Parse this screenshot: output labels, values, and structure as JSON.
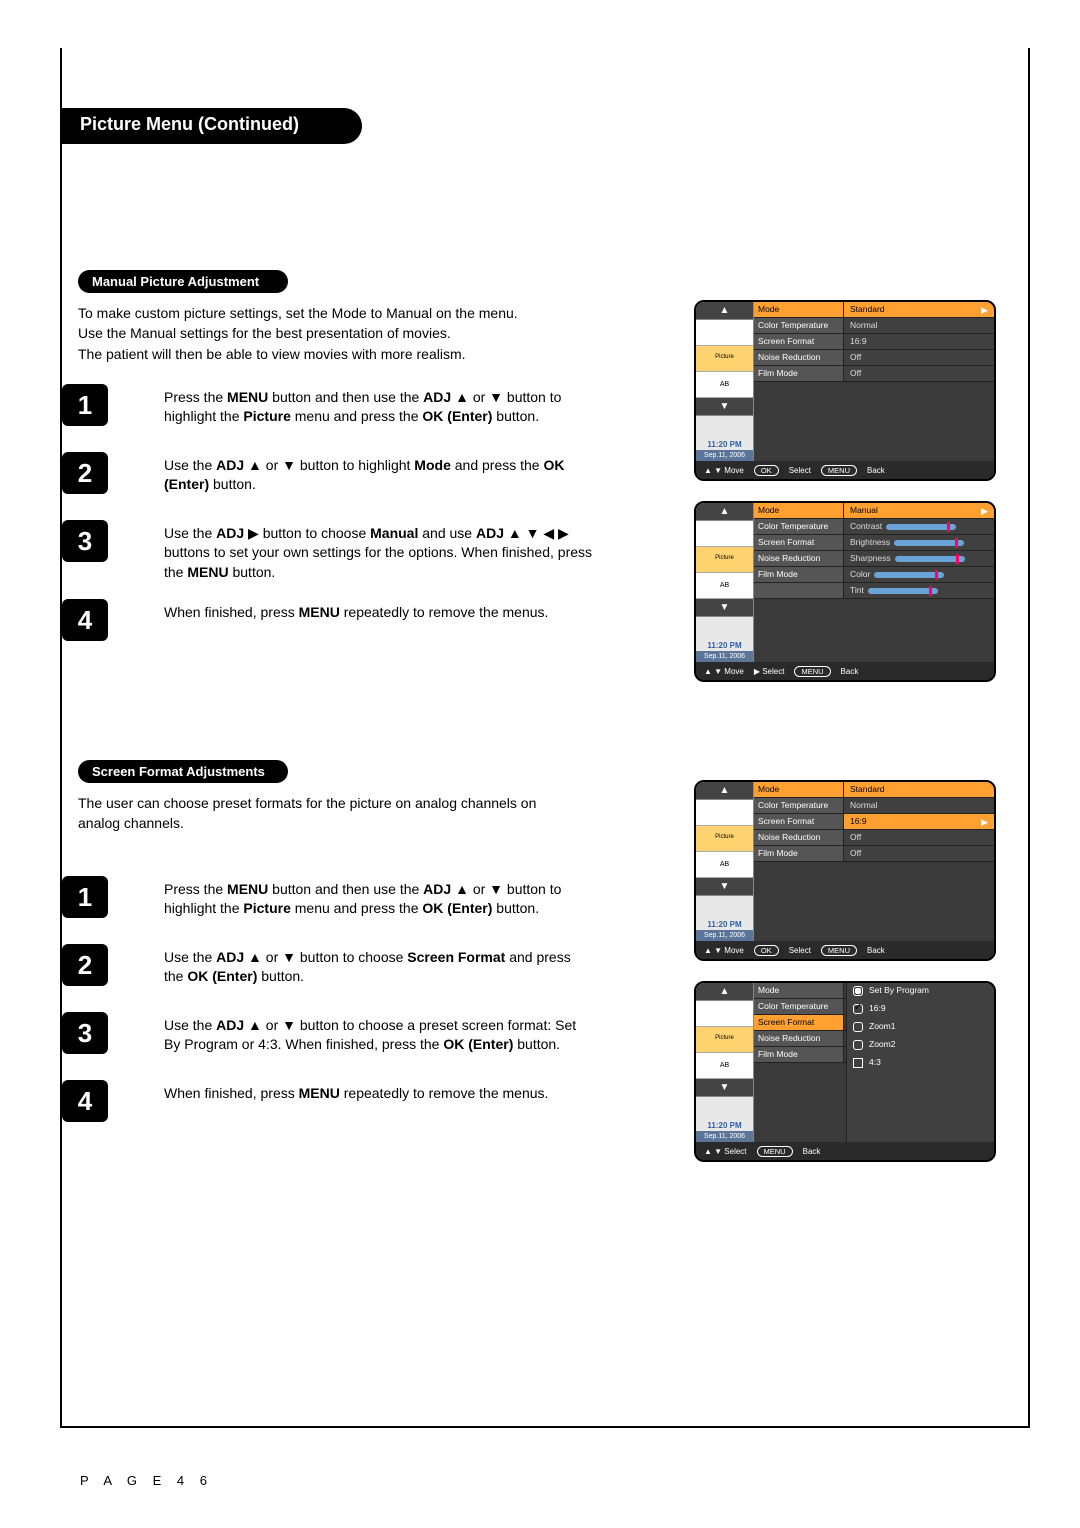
{
  "page_title": "Picture Menu (Continued)",
  "page_number": "P A G E  4 6",
  "section1": {
    "heading": "Manual Picture Adjustment",
    "intro_lines": [
      "To make custom picture settings, set the Mode to Manual on the menu.",
      "Use the Manual settings for the best presentation of movies.",
      "The patient will then be able to view movies with more realism."
    ],
    "steps": [
      {
        "n": "1",
        "html": "Press the <b>MENU</b> button and then use the <b>ADJ</b> ▲ or ▼ button to highlight the <b>Picture</b> menu and press the <b>OK (Enter)</b> button."
      },
      {
        "n": "2",
        "html": "Use the <b>ADJ</b> ▲ or ▼ button to highlight <b>Mode</b> and press the <b>OK (Enter)</b> button."
      },
      {
        "n": "3",
        "html": "Use the <b>ADJ</b> ▶ button to choose <b>Manual</b> and use <b>ADJ</b> ▲ ▼ ◀ ▶ buttons to set your own settings for the options. When finished, press the <b>MENU</b> button."
      },
      {
        "n": "4",
        "html": "When finished, press <b>MENU</b> repeatedly to remove the menus."
      }
    ]
  },
  "section2": {
    "heading": "Screen Format Adjustments",
    "intro_lines": [
      "The user can choose preset formats for the picture on analog channels on analog channels."
    ],
    "steps": [
      {
        "n": "1",
        "html": "Press the <b>MENU</b> button and then use the <b>ADJ</b> ▲ or ▼ button to highlight the <b>Picture</b> menu and press the <b>OK (Enter)</b> button."
      },
      {
        "n": "2",
        "html": "Use the <b>ADJ</b> ▲ or ▼ button to choose <b>Screen Format</b> and press the <b>OK (Enter)</b> button."
      },
      {
        "n": "3",
        "html": "Use the <b>ADJ</b> ▲ or ▼ button to choose a preset screen format: Set By Program or 4:3. When finished, press the <b>OK (Enter)</b> button."
      },
      {
        "n": "4",
        "html": "When finished, press <b>MENU</b> repeatedly to remove the menus."
      }
    ]
  },
  "osd_common": {
    "time": "11:20 PM",
    "date": "Sep.11, 2006",
    "side_labels": [
      "▲",
      "",
      "",
      "",
      "▼"
    ],
    "ab": "AB"
  },
  "osd1": {
    "rows": [
      {
        "l": "Mode",
        "r": "Standard",
        "hl": true,
        "tri": true
      },
      {
        "l": "Color Temperature",
        "r": "Normal"
      },
      {
        "l": "Screen Format",
        "r": "16:9"
      },
      {
        "l": "Noise Reduction",
        "r": "Off"
      },
      {
        "l": "Film Mode",
        "r": "Off"
      }
    ],
    "foot": [
      {
        "t": "▲ ▼ Move"
      },
      {
        "pill": "OK"
      },
      {
        "t": "Select"
      },
      {
        "pill": "MENU"
      },
      {
        "t": "Back"
      }
    ]
  },
  "osd2": {
    "rows": [
      {
        "l": "Mode",
        "r": "Manual",
        "hl": true,
        "tri": true
      },
      {
        "l": "Color Temperature",
        "r": "Contrast",
        "slider": true
      },
      {
        "l": "Screen Format",
        "r": "Brightness",
        "slider": true
      },
      {
        "l": "Noise Reduction",
        "r": "Sharpness",
        "slider": true
      },
      {
        "l": "Film Mode",
        "r": "Color",
        "slider": true
      },
      {
        "l": "",
        "r": "Tint",
        "slider": true
      }
    ],
    "foot": [
      {
        "t": "▲ ▼ Move"
      },
      {
        "t": "▶ Select"
      },
      {
        "pill": "MENU"
      },
      {
        "t": "Back"
      }
    ]
  },
  "osd3": {
    "rows": [
      {
        "l": "Mode",
        "r": "Standard",
        "hl": true
      },
      {
        "l": "Color Temperature",
        "r": "Normal"
      },
      {
        "l": "Screen Format",
        "r": "16:9",
        "hl_row": true,
        "tri": true
      },
      {
        "l": "Noise Reduction",
        "r": "Off"
      },
      {
        "l": "Film Mode",
        "r": "Off"
      }
    ],
    "foot": [
      {
        "t": "▲ ▼ Move"
      },
      {
        "pill": "OK"
      },
      {
        "t": "Select"
      },
      {
        "pill": "MENU"
      },
      {
        "t": "Back"
      }
    ]
  },
  "osd4": {
    "rows": [
      {
        "l": "Mode"
      },
      {
        "l": "Color Temperature"
      },
      {
        "l": "Screen Format",
        "hl_l": true
      },
      {
        "l": "Noise Reduction"
      },
      {
        "l": "Film Mode"
      }
    ],
    "options": [
      {
        "label": "Set By Program",
        "radio": "dot"
      },
      {
        "label": "16:9",
        "radio": "check"
      },
      {
        "label": "Zoom1",
        "radio": ""
      },
      {
        "label": "Zoom2",
        "radio": ""
      },
      {
        "label": "4:3",
        "radio": "box"
      }
    ],
    "foot": [
      {
        "t": "▲ ▼ Select"
      },
      {
        "pill": "MENU"
      },
      {
        "t": "Back"
      }
    ]
  }
}
